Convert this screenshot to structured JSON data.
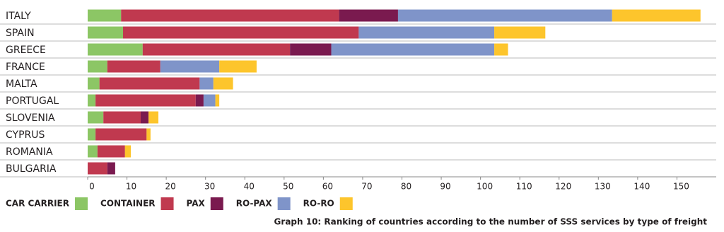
{
  "chart_data": {
    "type": "stacked-barh",
    "title": "Graph 10: Ranking of countries according to the number of SSS services by type of freight",
    "categories": [
      "ITALY",
      "SPAIN",
      "GREECE",
      "FRANCE",
      "MALTA",
      "PORTUGAL",
      "SLOVENIA",
      "CYPRUS",
      "ROMANIA",
      "BULGARIA"
    ],
    "series": [
      {
        "name": "CAR CARRIER",
        "color": "#8cc665",
        "values": [
          8.5,
          9,
          14,
          5,
          3,
          2,
          4,
          2,
          2.5,
          0
        ]
      },
      {
        "name": "CONTAINER",
        "color": "#c0394f",
        "values": [
          55.5,
          60,
          37.5,
          13.5,
          25.5,
          25.5,
          9.5,
          13,
          7,
          5
        ]
      },
      {
        "name": "PAX",
        "color": "#7a1a4f",
        "values": [
          15,
          0,
          10.5,
          0,
          0,
          2,
          2,
          0,
          0,
          2
        ]
      },
      {
        "name": "RO-PAX",
        "color": "#7f94c9",
        "values": [
          54.5,
          34.5,
          41.5,
          15,
          3.5,
          3,
          0,
          0,
          0,
          0
        ]
      },
      {
        "name": "RO-RO",
        "color": "#fdc52c",
        "values": [
          22.5,
          13,
          3.5,
          9.5,
          5,
          1,
          2.5,
          1,
          1.5,
          0
        ]
      }
    ],
    "xlim": [
      0,
      160
    ],
    "xticks": [
      0,
      10,
      20,
      30,
      40,
      50,
      60,
      70,
      80,
      90,
      100,
      110,
      120,
      130,
      140,
      150
    ]
  }
}
